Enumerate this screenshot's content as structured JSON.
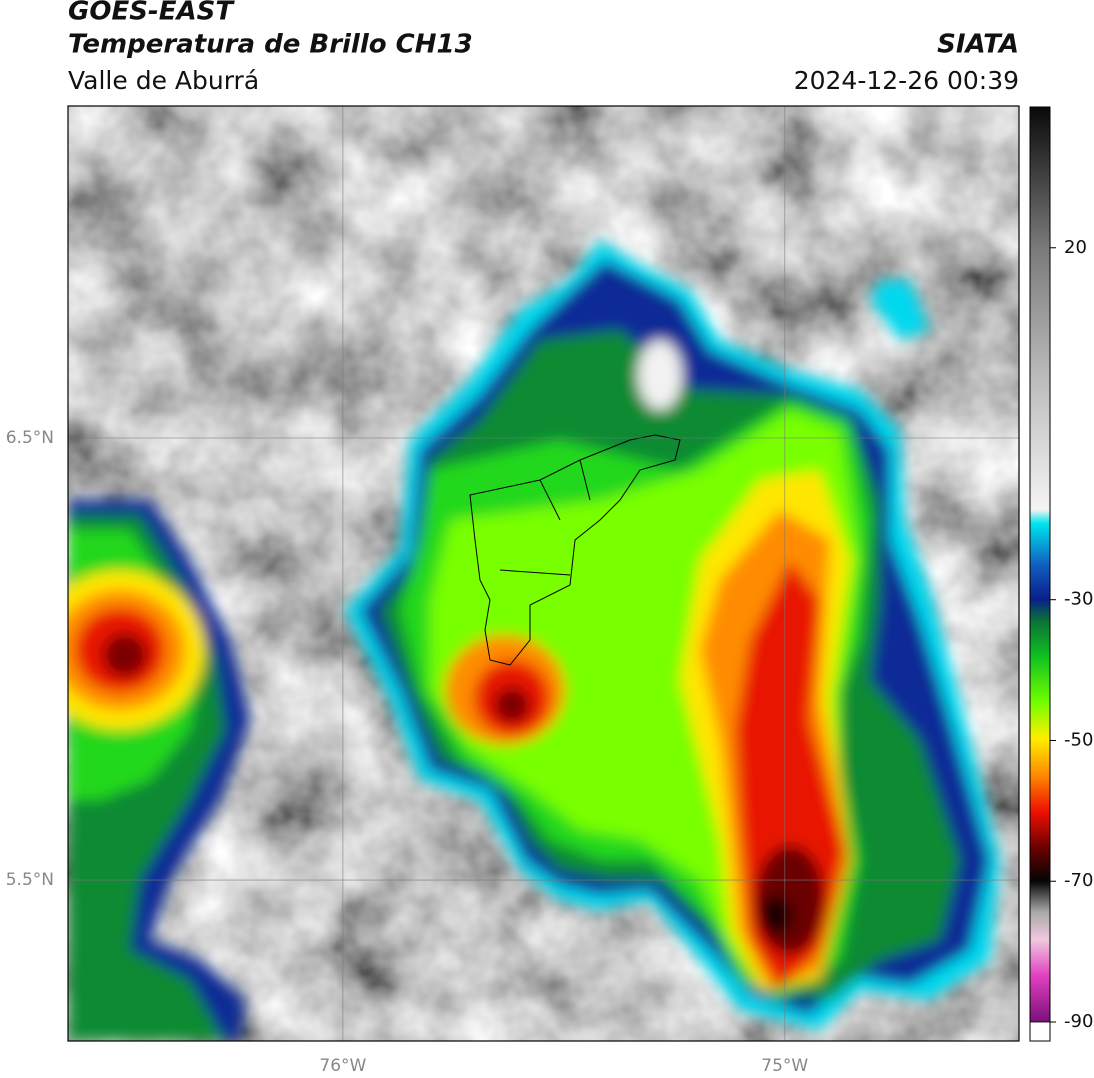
{
  "header": {
    "title": "GOES-EAST",
    "subtitle": "Temperatura de Brillo CH13",
    "region": "Valle de Aburrá",
    "source": "SIATA",
    "datetime": "2024-12-26 00:39"
  },
  "map": {
    "xlim": [
      -76.622,
      -74.47
    ],
    "ylim": [
      5.136,
      7.251
    ],
    "xticks": [
      {
        "value": -76,
        "label": "76°W"
      },
      {
        "value": -75,
        "label": "75°W"
      }
    ],
    "yticks": [
      {
        "value": 6.5,
        "label": "6.5°N"
      },
      {
        "value": 5.5,
        "label": "5.5°N"
      }
    ],
    "grid": true
  },
  "colorbar": {
    "lim": [
      -90,
      40
    ],
    "ticks": [
      20,
      -30,
      -50,
      -70,
      -90
    ]
  }
}
